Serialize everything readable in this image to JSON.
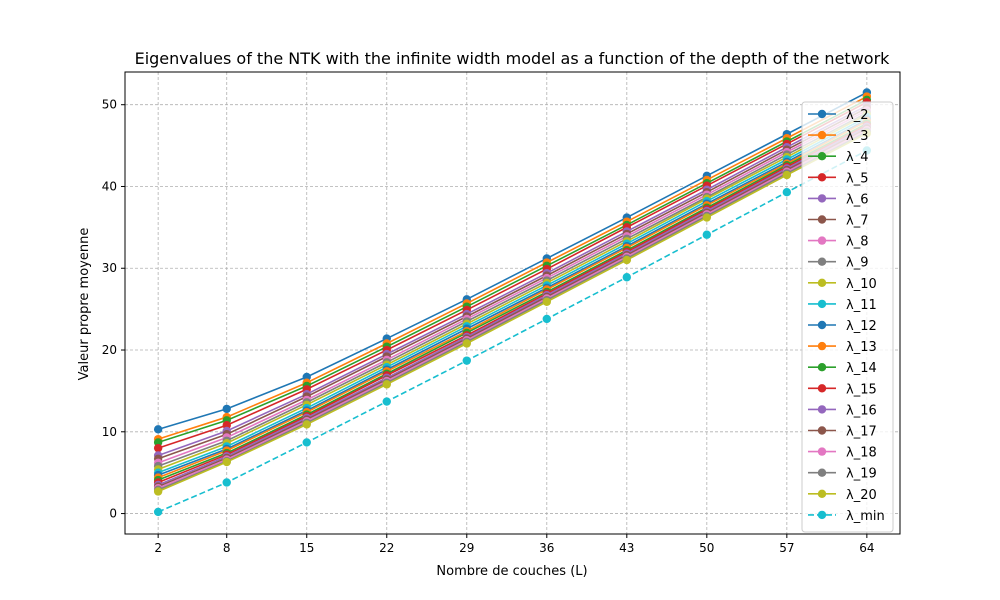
{
  "chart_data": {
    "type": "line",
    "title": "Eigenvalues of the NTK with the infinite width model as a function of the depth of the network",
    "xlabel": "Nombre de couches (L)",
    "ylabel": "Valeur propre moyenne",
    "x": [
      2,
      8,
      15,
      22,
      29,
      36,
      43,
      50,
      57,
      64
    ],
    "x_tick_labels": [
      "2",
      "8",
      "15",
      "22",
      "29",
      "36",
      "43",
      "50",
      "57",
      "64"
    ],
    "yticks": [
      0,
      10,
      20,
      30,
      40,
      50
    ],
    "ylim": [
      -2.5,
      54
    ],
    "grid": true,
    "legend_position": "right",
    "series": [
      {
        "name": "λ_2",
        "color": "#1f77b4",
        "dash": false,
        "values": [
          10.3,
          12.8,
          16.7,
          21.4,
          26.2,
          31.2,
          36.2,
          41.3,
          46.4,
          51.5
        ]
      },
      {
        "name": "λ_3",
        "color": "#ff7f0e",
        "dash": false,
        "values": [
          9.1,
          11.8,
          16.0,
          20.8,
          25.7,
          30.7,
          35.7,
          40.8,
          45.9,
          51.0
        ]
      },
      {
        "name": "λ_4",
        "color": "#2ca02c",
        "dash": false,
        "values": [
          8.7,
          11.4,
          15.6,
          20.4,
          25.3,
          30.3,
          35.3,
          40.4,
          45.5,
          50.6
        ]
      },
      {
        "name": "λ_5",
        "color": "#d62728",
        "dash": false,
        "values": [
          8.0,
          10.8,
          15.2,
          20.0,
          24.9,
          29.9,
          35.0,
          40.1,
          45.2,
          50.3
        ]
      },
      {
        "name": "λ_6",
        "color": "#9467bd",
        "dash": false,
        "values": [
          7.1,
          10.1,
          14.6,
          19.5,
          24.4,
          29.4,
          34.5,
          39.6,
          44.8,
          49.9
        ]
      },
      {
        "name": "λ_7",
        "color": "#8c564b",
        "dash": false,
        "values": [
          6.7,
          9.7,
          14.3,
          19.2,
          24.1,
          29.1,
          34.2,
          39.3,
          44.5,
          49.6
        ]
      },
      {
        "name": "λ_8",
        "color": "#e377c2",
        "dash": false,
        "values": [
          6.2,
          9.3,
          13.9,
          18.8,
          23.8,
          28.8,
          33.9,
          39.0,
          44.2,
          49.3
        ]
      },
      {
        "name": "λ_9",
        "color": "#7f7f7f",
        "dash": false,
        "values": [
          5.8,
          8.9,
          13.6,
          18.5,
          23.5,
          28.5,
          33.6,
          38.7,
          43.9,
          49.0
        ]
      },
      {
        "name": "λ_10",
        "color": "#bcbd22",
        "dash": false,
        "values": [
          5.4,
          8.6,
          13.3,
          18.2,
          23.2,
          28.2,
          33.3,
          38.5,
          43.6,
          48.8
        ]
      },
      {
        "name": "λ_11",
        "color": "#17becf",
        "dash": false,
        "values": [
          5.0,
          8.2,
          12.9,
          17.9,
          22.9,
          27.9,
          33.0,
          38.2,
          43.3,
          48.5
        ]
      },
      {
        "name": "λ_12",
        "color": "#1f77b4",
        "dash": false,
        "values": [
          4.7,
          7.9,
          12.6,
          17.6,
          22.6,
          27.6,
          32.7,
          37.9,
          43.0,
          48.2
        ]
      },
      {
        "name": "λ_13",
        "color": "#ff7f0e",
        "dash": false,
        "values": [
          4.4,
          7.7,
          12.4,
          17.4,
          22.3,
          27.4,
          32.5,
          37.7,
          42.8,
          48.0
        ]
      },
      {
        "name": "λ_14",
        "color": "#2ca02c",
        "dash": false,
        "values": [
          4.1,
          7.4,
          12.1,
          17.1,
          22.1,
          27.1,
          32.2,
          37.4,
          42.6,
          47.7
        ]
      },
      {
        "name": "λ_15",
        "color": "#d62728",
        "dash": false,
        "values": [
          3.8,
          7.2,
          11.9,
          16.9,
          21.8,
          26.9,
          32.0,
          37.2,
          42.4,
          47.5
        ]
      },
      {
        "name": "λ_16",
        "color": "#9467bd",
        "dash": false,
        "values": [
          3.5,
          7.0,
          11.7,
          16.6,
          21.6,
          26.7,
          31.8,
          37.0,
          42.2,
          47.3
        ]
      },
      {
        "name": "λ_17",
        "color": "#8c564b",
        "dash": false,
        "values": [
          3.3,
          6.8,
          11.5,
          16.4,
          21.4,
          26.5,
          31.6,
          36.8,
          42.0,
          47.1
        ]
      },
      {
        "name": "λ_18",
        "color": "#e377c2",
        "dash": false,
        "values": [
          3.1,
          6.6,
          11.3,
          16.2,
          21.2,
          26.3,
          31.4,
          36.6,
          41.8,
          46.9
        ]
      },
      {
        "name": "λ_19",
        "color": "#7f7f7f",
        "dash": false,
        "values": [
          2.9,
          6.4,
          11.1,
          16.0,
          21.0,
          26.1,
          31.2,
          36.4,
          41.6,
          46.7
        ]
      },
      {
        "name": "λ_20",
        "color": "#bcbd22",
        "dash": false,
        "values": [
          2.7,
          6.3,
          10.9,
          15.8,
          20.8,
          25.9,
          31.0,
          36.2,
          41.4,
          46.5
        ]
      },
      {
        "name": "λ_min",
        "color": "#17becf",
        "dash": true,
        "values": [
          0.2,
          3.8,
          8.7,
          13.7,
          18.7,
          23.8,
          28.9,
          34.1,
          39.3,
          44.4
        ]
      }
    ]
  }
}
